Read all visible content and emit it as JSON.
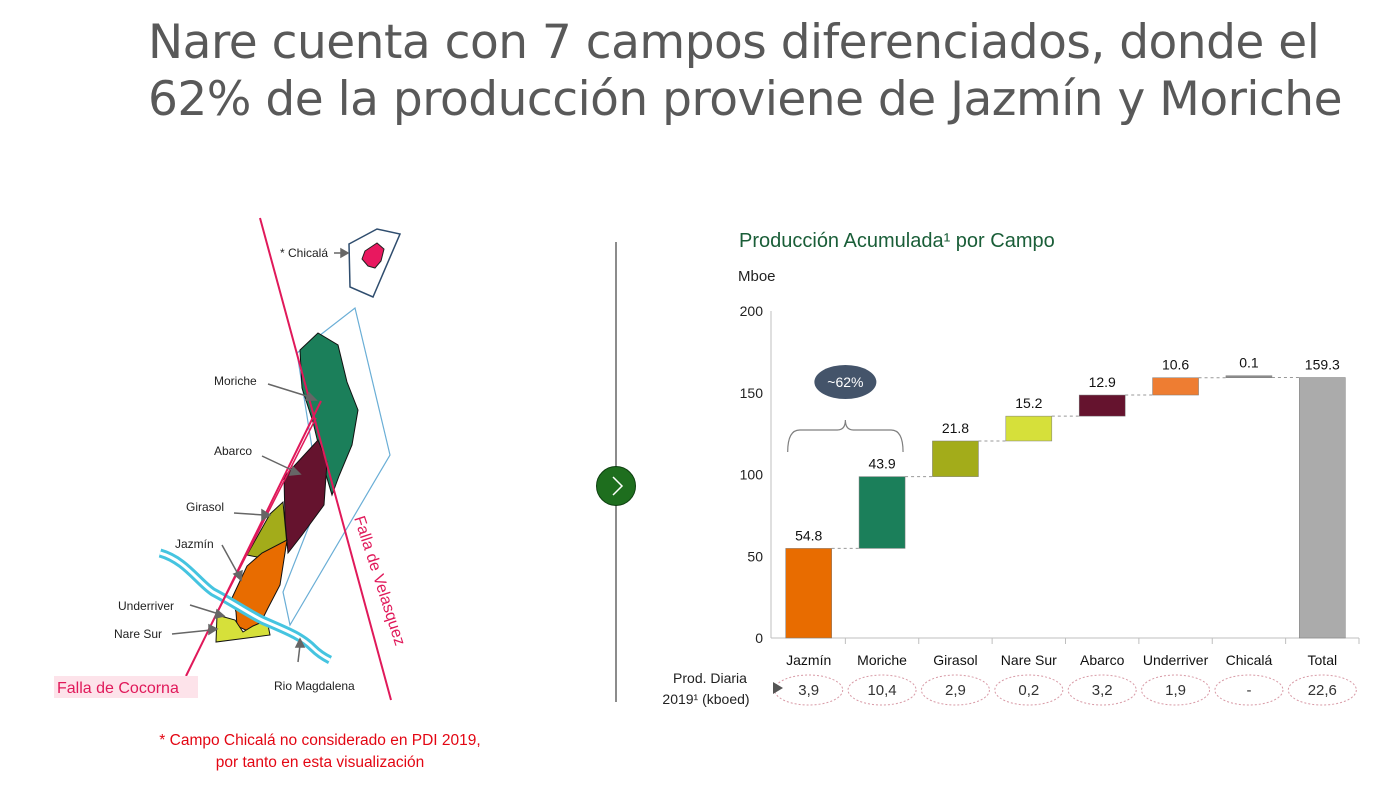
{
  "title": "Nare cuenta con 7 campos diferenciados, donde el 62% de la producción proviene de Jazmín y Moriche",
  "map": {
    "labels": {
      "chicala": "* Chicalá",
      "moriche": "Moriche",
      "abarco": "Abarco",
      "girasol": "Girasol",
      "jazmin": "Jazmín",
      "underriver": "Underriver",
      "nare_sur": "Nare Sur",
      "rio_magdalena": "Rio Magdalena",
      "falla_velasquez": "Falla de Velasquez",
      "falla_cocorna": "Falla de Cocorna"
    },
    "colors": {
      "fault": "#e0195a",
      "river": "#45c4e0",
      "outline": "#6aaed6",
      "chicala_outline": "#2f4d6e"
    }
  },
  "footnote": {
    "line1": "*  Campo Chicalá no considerado en PDI 2019,",
    "line2": "por tanto en esta visualización"
  },
  "nav": {
    "next_icon": "chevron-right-icon"
  },
  "chart_data": {
    "type": "waterfall",
    "title": "Producción Acumulada¹ por Campo",
    "ylabel": "Mboe",
    "ylim": [
      0,
      200
    ],
    "yticks": [
      0,
      50,
      100,
      150,
      200
    ],
    "categories": [
      "Jazmín",
      "Moriche",
      "Girasol",
      "Nare Sur",
      "Abarco",
      "Underriver",
      "Chicalá",
      "Total"
    ],
    "values": [
      54.8,
      43.9,
      21.8,
      15.2,
      12.9,
      10.6,
      0.1,
      159.3
    ],
    "value_labels": [
      "54.8",
      "43.9",
      "21.8",
      "15.2",
      "12.9",
      "10.6",
      "0.1",
      "159.3"
    ],
    "colors": [
      "#e86c00",
      "#1b7f5a",
      "#a3ac1a",
      "#d6e03a",
      "#65132e",
      "#ee7d32",
      "#8c8c8c",
      "#ababab"
    ],
    "annotation": "~62%",
    "daily_production": {
      "label_line1": "Prod. Diaria",
      "label_line2": "2019¹ (kboed)",
      "values": [
        "3,9",
        "10,4",
        "2,9",
        "0,2",
        "3,2",
        "1,9",
        "-",
        "22,6"
      ]
    }
  }
}
